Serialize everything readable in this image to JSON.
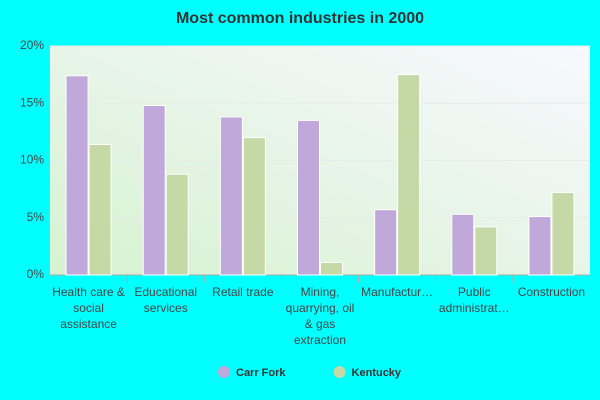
{
  "chart_data": {
    "type": "bar",
    "title": "Most common industries in 2000",
    "categories": [
      "Health care & social assistance",
      "Educational services",
      "Retail trade",
      "Mining, quarrying, oil & gas extraction",
      "Manufactur…",
      "Public administrat…",
      "Construction"
    ],
    "series": [
      {
        "name": "Carr Fork",
        "color": "#c0a8da",
        "values": [
          17.4,
          14.8,
          13.8,
          13.5,
          5.7,
          5.3,
          5.1
        ]
      },
      {
        "name": "Kentucky",
        "color": "#c4d9a6",
        "values": [
          11.4,
          8.8,
          12.0,
          1.1,
          17.5,
          4.2,
          7.2
        ]
      }
    ],
    "ylim": [
      0,
      20
    ],
    "yticks": [
      {
        "value": 0,
        "label": "0%"
      },
      {
        "value": 5,
        "label": "5%"
      },
      {
        "value": 10,
        "label": "10%"
      },
      {
        "value": 15,
        "label": "15%"
      },
      {
        "value": 20,
        "label": "20%"
      }
    ],
    "grid": true
  }
}
